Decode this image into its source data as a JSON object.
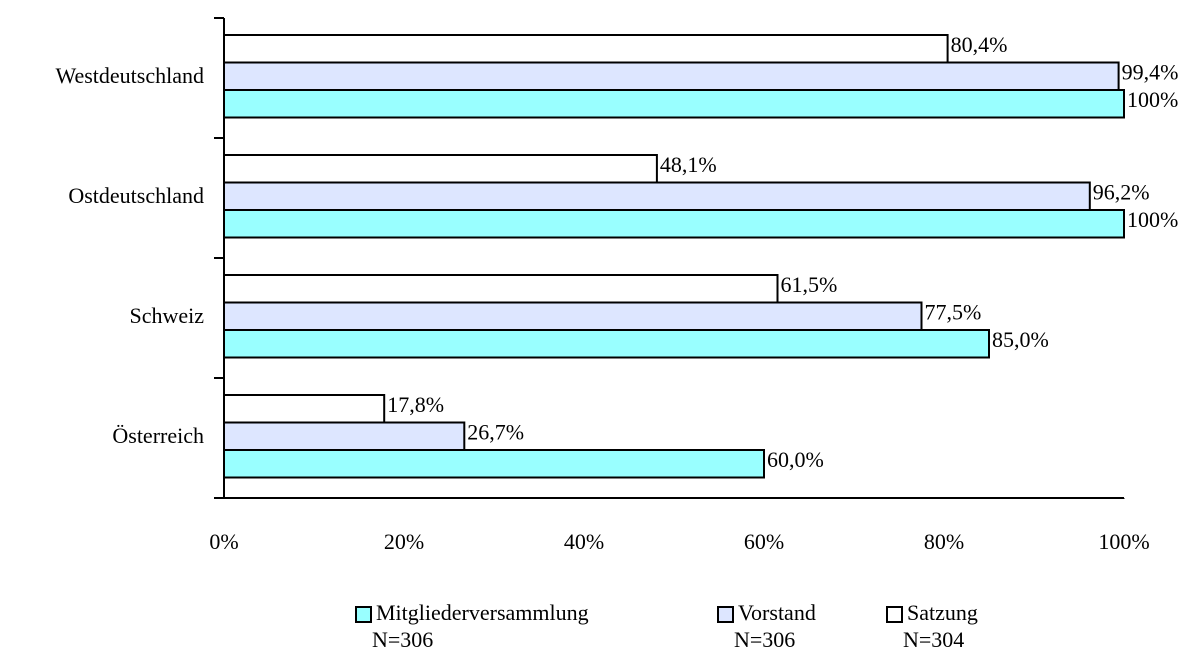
{
  "chart_data": {
    "type": "bar",
    "orientation": "horizontal",
    "categories": [
      "Westdeutschland",
      "Ostdeutschland",
      "Schweiz",
      "Österreich"
    ],
    "series": [
      {
        "name": "Mitgliederversammlung",
        "n_label": "N=306",
        "color": "#99ffff",
        "values": [
          100,
          100,
          85.0,
          60.0
        ],
        "value_labels": [
          "100%",
          "100%",
          "85,0%",
          "60,0%"
        ]
      },
      {
        "name": "Vorstand",
        "n_label": "N=306",
        "color": "#dde6ff",
        "values": [
          99.4,
          96.2,
          77.5,
          26.7
        ],
        "value_labels": [
          "99,4%",
          "96,2%",
          "77,5%",
          "26,7%"
        ]
      },
      {
        "name": "Satzung",
        "n_label": "N=304",
        "color": "#ffffff",
        "values": [
          80.4,
          48.1,
          61.5,
          17.8
        ],
        "value_labels": [
          "80,4%",
          "48,1%",
          "61,5%",
          "17,8%"
        ]
      }
    ],
    "xlim": [
      0,
      100
    ],
    "xticks": [
      {
        "value": 0,
        "label": "0%"
      },
      {
        "value": 20,
        "label": "20%"
      },
      {
        "value": 40,
        "label": "40%"
      },
      {
        "value": 60,
        "label": "60%"
      },
      {
        "value": 80,
        "label": "80%"
      },
      {
        "value": 100,
        "label": "100%"
      }
    ],
    "grid": false,
    "legend": "bottom"
  }
}
